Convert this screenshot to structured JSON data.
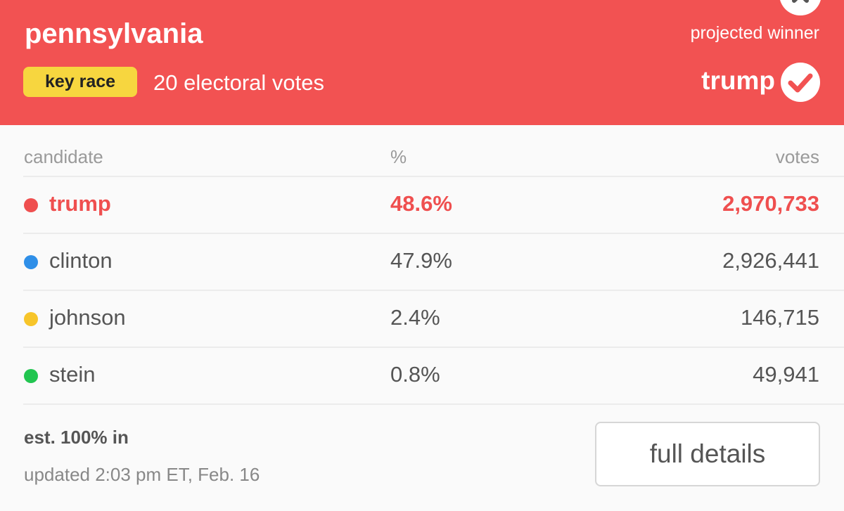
{
  "header": {
    "title": "pennsylvania",
    "badge": "key race",
    "electoral": "20 electoral votes",
    "projected": "projected winner",
    "winner": "trump"
  },
  "table": {
    "columns": [
      "candidate",
      "%",
      "votes"
    ],
    "rows": [
      {
        "name": "trump",
        "color": "#ef4f4f",
        "pct": "48.6%",
        "votes": "2,970,733"
      },
      {
        "name": "clinton",
        "color": "#2f8fe8",
        "pct": "47.9%",
        "votes": "2,926,441"
      },
      {
        "name": "johnson",
        "color": "#f7c52a",
        "pct": "2.4%",
        "votes": "146,715"
      },
      {
        "name": "stein",
        "color": "#22c550",
        "pct": "0.8%",
        "votes": "49,941"
      }
    ]
  },
  "footer": {
    "status": "est. 100% in",
    "updated": "updated 2:03 pm ET, Feb. 16",
    "button": "full details"
  }
}
